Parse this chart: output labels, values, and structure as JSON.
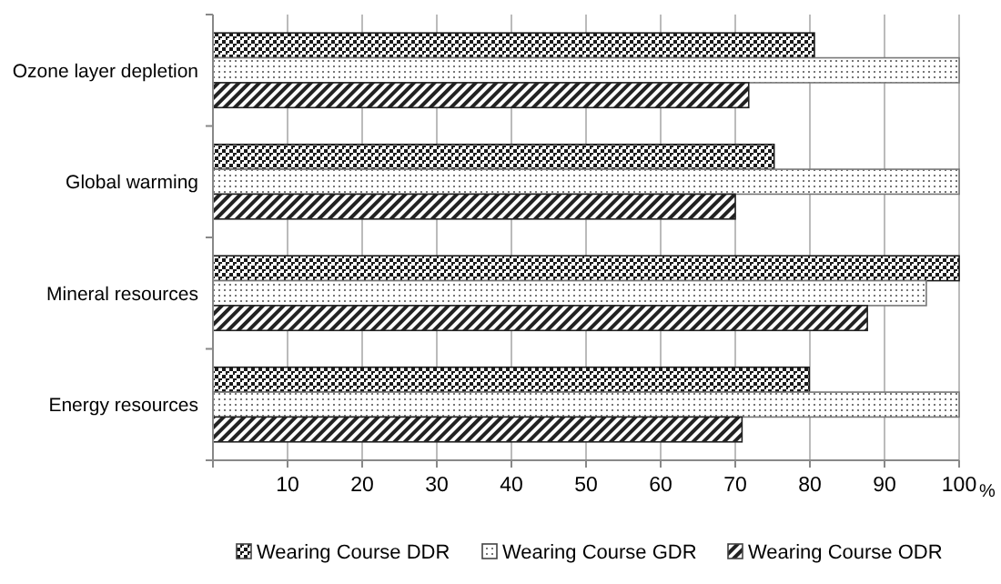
{
  "chart_data": {
    "type": "bar",
    "orientation": "horizontal",
    "xlabel": "%",
    "categories": [
      "Ozone layer depletion",
      "Global warming",
      "Mineral resources",
      "Energy resources"
    ],
    "series": [
      {
        "name": "Wearing Course DDR",
        "color": "#1a1a1a",
        "values": [
          80.6,
          75.2,
          100,
          79.9
        ]
      },
      {
        "name": "Wearing Course GDR",
        "color": "#777777",
        "values": [
          100,
          100,
          95.6,
          100
        ]
      },
      {
        "name": "Wearing Course ODR",
        "color": "#222222",
        "values": [
          71.8,
          70.0,
          87.7,
          70.9
        ]
      }
    ],
    "xlim": [
      0,
      100
    ],
    "xticks": [
      {
        "value": 0,
        "label": null
      },
      10,
      20,
      30,
      40,
      50,
      60,
      70,
      80,
      90,
      100
    ],
    "grid": "x",
    "legend": "bottom"
  }
}
